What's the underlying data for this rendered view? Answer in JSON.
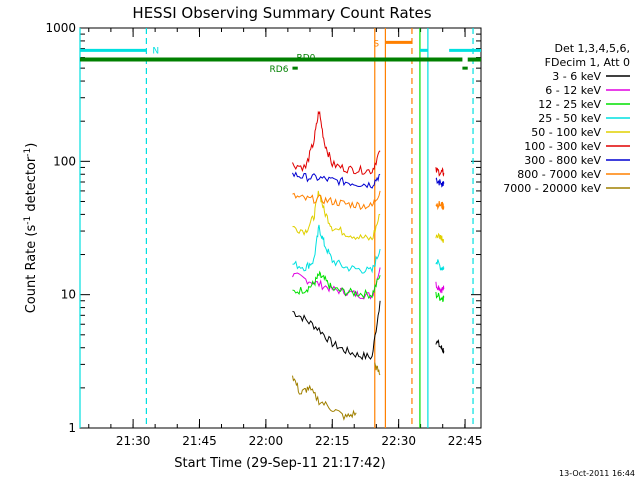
{
  "chart_data": {
    "type": "line",
    "title": "HESSI Observing Summary Count Rates",
    "xlabel": "Start Time (29-Sep-11 21:17:42)",
    "ylabel": "Count Rate (s⁻¹ detector⁻¹)",
    "ylabel_main": "Count Rate (s",
    "ylabel_mid": " detector",
    "ylabel_end": ")",
    "ylabel_sup": "-1",
    "yscale": "log",
    "ylim": [
      1,
      1000
    ],
    "xlim_minutes": [
      21.3,
      22.81
    ],
    "x_ticks": [
      "21:30",
      "21:45",
      "22:00",
      "22:15",
      "22:30",
      "22:45"
    ],
    "x_tick_minutes": [
      21.5,
      21.75,
      22.0,
      22.25,
      22.5,
      22.75
    ],
    "y_ticks": [
      "1",
      "10",
      "100",
      "1000"
    ],
    "legend": {
      "placement": "right",
      "header": [
        "Det 1,3,4,5,6,",
        "FDecim 1, Att 0"
      ],
      "entries": [
        {
          "label": "3 - 6 keV",
          "color": "#000000"
        },
        {
          "label": "6 - 12 keV",
          "color": "#e000e0"
        },
        {
          "label": "12 - 25 keV",
          "color": "#00e000"
        },
        {
          "label": "25 - 50 keV",
          "color": "#00e0e0"
        },
        {
          "label": "50 - 100 keV",
          "color": "#e0d000"
        },
        {
          "label": "100 - 300 keV",
          "color": "#e00000"
        },
        {
          "label": "300 - 800 keV",
          "color": "#0000d0"
        },
        {
          "label": "800 - 7000 keV",
          "color": "#ff8000"
        },
        {
          "label": "7000 - 20000 keV",
          "color": "#a08000"
        }
      ]
    },
    "series": [
      {
        "name": "3 - 6 keV",
        "color": "#000000",
        "segments": [
          [
            [
              22.1,
              7.5
            ],
            [
              22.15,
              6.5
            ],
            [
              22.2,
              5.5
            ],
            [
              22.25,
              4.3
            ],
            [
              22.3,
              3.8
            ],
            [
              22.35,
              3.5
            ],
            [
              22.4,
              3.4
            ],
            [
              22.43,
              9
            ]
          ],
          [
            [
              22.64,
              4.5
            ],
            [
              22.66,
              4.0
            ],
            [
              22.67,
              3.8
            ]
          ]
        ]
      },
      {
        "name": "6 - 12 keV",
        "color": "#e000e0",
        "segments": [
          [
            [
              22.1,
              14
            ],
            [
              22.15,
              13
            ],
            [
              22.2,
              12
            ],
            [
              22.25,
              11
            ],
            [
              22.3,
              10.5
            ],
            [
              22.35,
              10
            ],
            [
              22.4,
              9.8
            ],
            [
              22.43,
              16
            ]
          ],
          [
            [
              22.64,
              12
            ],
            [
              22.66,
              11
            ],
            [
              22.67,
              11
            ]
          ]
        ]
      },
      {
        "name": "12 - 25 keV",
        "color": "#00e000",
        "segments": [
          [
            [
              22.1,
              10.5
            ],
            [
              22.15,
              11
            ],
            [
              22.18,
              12
            ],
            [
              22.2,
              14
            ],
            [
              22.22,
              13
            ],
            [
              22.25,
              11
            ],
            [
              22.3,
              10.5
            ],
            [
              22.35,
              10.2
            ],
            [
              22.4,
              10
            ],
            [
              22.43,
              14
            ]
          ],
          [
            [
              22.64,
              10
            ],
            [
              22.66,
              9.5
            ],
            [
              22.67,
              9.5
            ]
          ]
        ]
      },
      {
        "name": "25 - 50 keV",
        "color": "#00e0e0",
        "segments": [
          [
            [
              22.1,
              17
            ],
            [
              22.15,
              16
            ],
            [
              22.18,
              18
            ],
            [
              22.2,
              32
            ],
            [
              22.22,
              24
            ],
            [
              22.25,
              18
            ],
            [
              22.3,
              16
            ],
            [
              22.35,
              15.5
            ],
            [
              22.4,
              15
            ],
            [
              22.43,
              22
            ]
          ],
          [
            [
              22.64,
              18
            ],
            [
              22.66,
              16
            ],
            [
              22.67,
              16
            ]
          ]
        ]
      },
      {
        "name": "50 - 100 keV",
        "color": "#e0d000",
        "segments": [
          [
            [
              22.1,
              32
            ],
            [
              22.15,
              30
            ],
            [
              22.18,
              38
            ],
            [
              22.2,
              60
            ],
            [
              22.22,
              42
            ],
            [
              22.25,
              32
            ],
            [
              22.3,
              29
            ],
            [
              22.35,
              27
            ],
            [
              22.4,
              26
            ],
            [
              22.43,
              40
            ]
          ],
          [
            [
              22.64,
              28
            ],
            [
              22.66,
              27
            ],
            [
              22.67,
              26
            ]
          ]
        ]
      },
      {
        "name": "100 - 300 keV",
        "color": "#e00000",
        "segments": [
          [
            [
              22.1,
              95
            ],
            [
              22.15,
              90
            ],
            [
              22.18,
              140
            ],
            [
              22.2,
              240
            ],
            [
              22.22,
              140
            ],
            [
              22.25,
              95
            ],
            [
              22.3,
              88
            ],
            [
              22.35,
              86
            ],
            [
              22.4,
              85
            ],
            [
              22.43,
              120
            ]
          ],
          [
            [
              22.64,
              85
            ],
            [
              22.66,
              83
            ],
            [
              22.67,
              82
            ]
          ]
        ]
      },
      {
        "name": "300 - 800 keV",
        "color": "#0000d0",
        "segments": [
          [
            [
              22.1,
              80
            ],
            [
              22.15,
              76
            ],
            [
              22.2,
              75
            ],
            [
              22.25,
              72
            ],
            [
              22.3,
              70
            ],
            [
              22.35,
              68
            ],
            [
              22.4,
              67
            ],
            [
              22.43,
              80
            ]
          ],
          [
            [
              22.64,
              70
            ],
            [
              22.66,
              69
            ],
            [
              22.67,
              68
            ]
          ]
        ]
      },
      {
        "name": "800 - 7000 keV",
        "color": "#ff8000",
        "segments": [
          [
            [
              22.1,
              55
            ],
            [
              22.15,
              52
            ],
            [
              22.2,
              52
            ],
            [
              22.25,
              50
            ],
            [
              22.3,
              48
            ],
            [
              22.35,
              47
            ],
            [
              22.4,
              46
            ],
            [
              22.43,
              60
            ]
          ],
          [
            [
              22.64,
              48
            ],
            [
              22.66,
              47
            ],
            [
              22.67,
              46
            ]
          ]
        ]
      },
      {
        "name": "7000 - 20000 keV",
        "color": "#a08000",
        "segments": [
          [
            [
              22.1,
              2.5
            ],
            [
              22.13,
              1.8
            ],
            [
              22.16,
              2.0
            ],
            [
              22.2,
              1.6
            ],
            [
              22.25,
              1.4
            ],
            [
              22.3,
              1.2
            ],
            [
              22.34,
              1.3
            ]
          ],
          [
            [
              22.41,
              3
            ],
            [
              22.43,
              2.5
            ]
          ]
        ]
      }
    ],
    "annotations": {
      "N": {
        "label": "N",
        "x_from": 21.3,
        "x_to": 22.81,
        "gaps": [
          [
            21.55,
            22.58
          ],
          [
            22.61,
            22.69
          ]
        ],
        "y": 680,
        "color": "#00e0e0"
      },
      "RD0": {
        "label": "RD0",
        "y": 580,
        "color": "#008000"
      },
      "RD6": {
        "label": "RD6",
        "y": 500,
        "color": "#008000"
      },
      "S": {
        "label": "S",
        "x_from": 22.45,
        "x_to": 22.55,
        "y": 780,
        "color": "#ff8000"
      }
    },
    "vertical_lines": [
      {
        "x": 21.3,
        "color": "#00e0e0",
        "style": "solid"
      },
      {
        "x": 21.55,
        "color": "#00e0e0",
        "style": "dashed"
      },
      {
        "x": 22.41,
        "color": "#ff8000",
        "style": "solid"
      },
      {
        "x": 22.45,
        "color": "#ff8000",
        "style": "solid"
      },
      {
        "x": 22.55,
        "color": "#ff8000",
        "style": "dashed"
      },
      {
        "x": 22.58,
        "color": "#00e000",
        "style": "solid"
      },
      {
        "x": 22.61,
        "color": "#00e0e0",
        "style": "solid"
      },
      {
        "x": 22.78,
        "color": "#00e0e0",
        "style": "dashed"
      }
    ],
    "footer_timestamp": "13-Oct-2011 16:44"
  }
}
